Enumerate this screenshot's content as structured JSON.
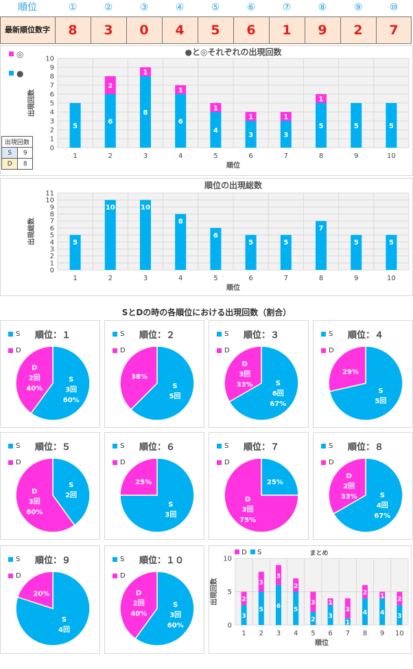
{
  "header": {
    "rank_label": "順位",
    "latest_label": "最新順位数字",
    "positions": [
      "①",
      "②",
      "③",
      "④",
      "⑤",
      "⑥",
      "⑦",
      "⑧",
      "⑨",
      "⑩"
    ],
    "digits": [
      "8",
      "3",
      "0",
      "4",
      "5",
      "6",
      "1",
      "9",
      "2",
      "7"
    ]
  },
  "colors": {
    "s": "#00b0f0",
    "d": "#ff33e0",
    "grid": "#d9d9d9",
    "plot": "#f2f2f2"
  },
  "mini_table": {
    "header": "出現回数",
    "rows": [
      {
        "k": "S",
        "v": "9"
      },
      {
        "k": "D",
        "v": "8"
      }
    ]
  },
  "chart_data": [
    {
      "type": "bar",
      "stacked": true,
      "title": "●と◎それぞれの出現回数",
      "xlabel": "順位",
      "ylabel": "出現回数",
      "categories": [
        "1",
        "2",
        "3",
        "4",
        "5",
        "6",
        "7",
        "8",
        "9",
        "10"
      ],
      "ylim": [
        0,
        10
      ],
      "yticks": [
        "0",
        "1",
        "2",
        "3",
        "4",
        "5",
        "6",
        "7",
        "8",
        "9",
        "10"
      ],
      "legend": [
        {
          "name": "◎",
          "color": "#ff33e0"
        },
        {
          "name": "●",
          "color": "#00b0f0"
        }
      ],
      "series": [
        {
          "name": "●",
          "values": [
            5,
            6,
            8,
            6,
            4,
            3,
            3,
            5,
            5,
            5
          ]
        },
        {
          "name": "◎",
          "values": [
            0,
            2,
            1,
            1,
            1,
            1,
            1,
            1,
            0,
            0
          ]
        }
      ]
    },
    {
      "type": "bar",
      "title": "順位の出現総数",
      "xlabel": "順位",
      "ylabel": "出現総数",
      "categories": [
        "1",
        "2",
        "3",
        "4",
        "5",
        "6",
        "7",
        "8",
        "9",
        "10"
      ],
      "ylim": [
        0,
        11
      ],
      "yticks": [
        "0",
        "1",
        "2",
        "3",
        "4",
        "5",
        "6",
        "7",
        "8",
        "9",
        "10",
        "11"
      ],
      "values": [
        5,
        10,
        10,
        8,
        6,
        5,
        5,
        7,
        5,
        5
      ]
    },
    {
      "type": "pie",
      "group_title": "SとDの時の各順位における出現回数（割合）",
      "legend": [
        "S",
        "D"
      ],
      "pies": [
        {
          "title": "順位：１",
          "S": 3,
          "D": 2,
          "s_label": [
            "S",
            "3回",
            "60%"
          ],
          "d_label": [
            "D",
            "2回",
            "40%"
          ]
        },
        {
          "title": "順位：２",
          "S": 5,
          "D": 3,
          "s_label": [
            "S",
            "5回"
          ],
          "d_label": [
            "38%"
          ]
        },
        {
          "title": "順位：３",
          "S": 6,
          "D": 3,
          "s_label": [
            "S",
            "6回",
            "67%"
          ],
          "d_label": [
            "D",
            "3回",
            "33%"
          ]
        },
        {
          "title": "順位：４",
          "S": 5,
          "D": 2,
          "s_label": [
            "S",
            "5回"
          ],
          "d_label": [
            "29%"
          ]
        },
        {
          "title": "順位：５",
          "S": 2,
          "D": 3,
          "s_label": [
            "S",
            "2回"
          ],
          "d_label": [
            "D",
            "3回",
            "60%"
          ]
        },
        {
          "title": "順位：６",
          "S": 3,
          "D": 1,
          "s_label": [
            "S",
            "3回"
          ],
          "d_label": [
            "25%"
          ]
        },
        {
          "title": "順位：７",
          "S": 1,
          "D": 3,
          "s_label": [
            "25%"
          ],
          "d_label": [
            "D",
            "3回",
            "75%"
          ]
        },
        {
          "title": "順位：８",
          "S": 4,
          "D": 2,
          "s_label": [
            "S",
            "4回",
            "67%"
          ],
          "d_label": [
            "D",
            "2回",
            "33%"
          ]
        },
        {
          "title": "順位：９",
          "S": 4,
          "D": 1,
          "s_label": [
            "S",
            "4回"
          ],
          "d_label": [
            "20%"
          ]
        },
        {
          "title": "順位：１０",
          "S": 3,
          "D": 2,
          "s_label": [
            "S",
            "3回",
            "60%"
          ],
          "d_label": [
            "D",
            "2回",
            "40%"
          ]
        }
      ]
    },
    {
      "type": "bar",
      "stacked": true,
      "title": "まとめ",
      "xlabel": "順位",
      "ylabel": "出現回数",
      "categories": [
        "1",
        "2",
        "3",
        "4",
        "5",
        "6",
        "7",
        "8",
        "9",
        "10"
      ],
      "ylim": [
        0,
        10
      ],
      "yticks": [
        "0",
        "5",
        "10"
      ],
      "legend": [
        {
          "name": "D",
          "color": "#ff33e0"
        },
        {
          "name": "S",
          "color": "#00b0f0"
        }
      ],
      "series": [
        {
          "name": "S",
          "values": [
            3,
            5,
            6,
            5,
            2,
            3,
            1,
            4,
            4,
            3
          ]
        },
        {
          "name": "D",
          "values": [
            2,
            3,
            3,
            2,
            3,
            1,
            3,
            2,
            1,
            2
          ]
        }
      ]
    }
  ]
}
